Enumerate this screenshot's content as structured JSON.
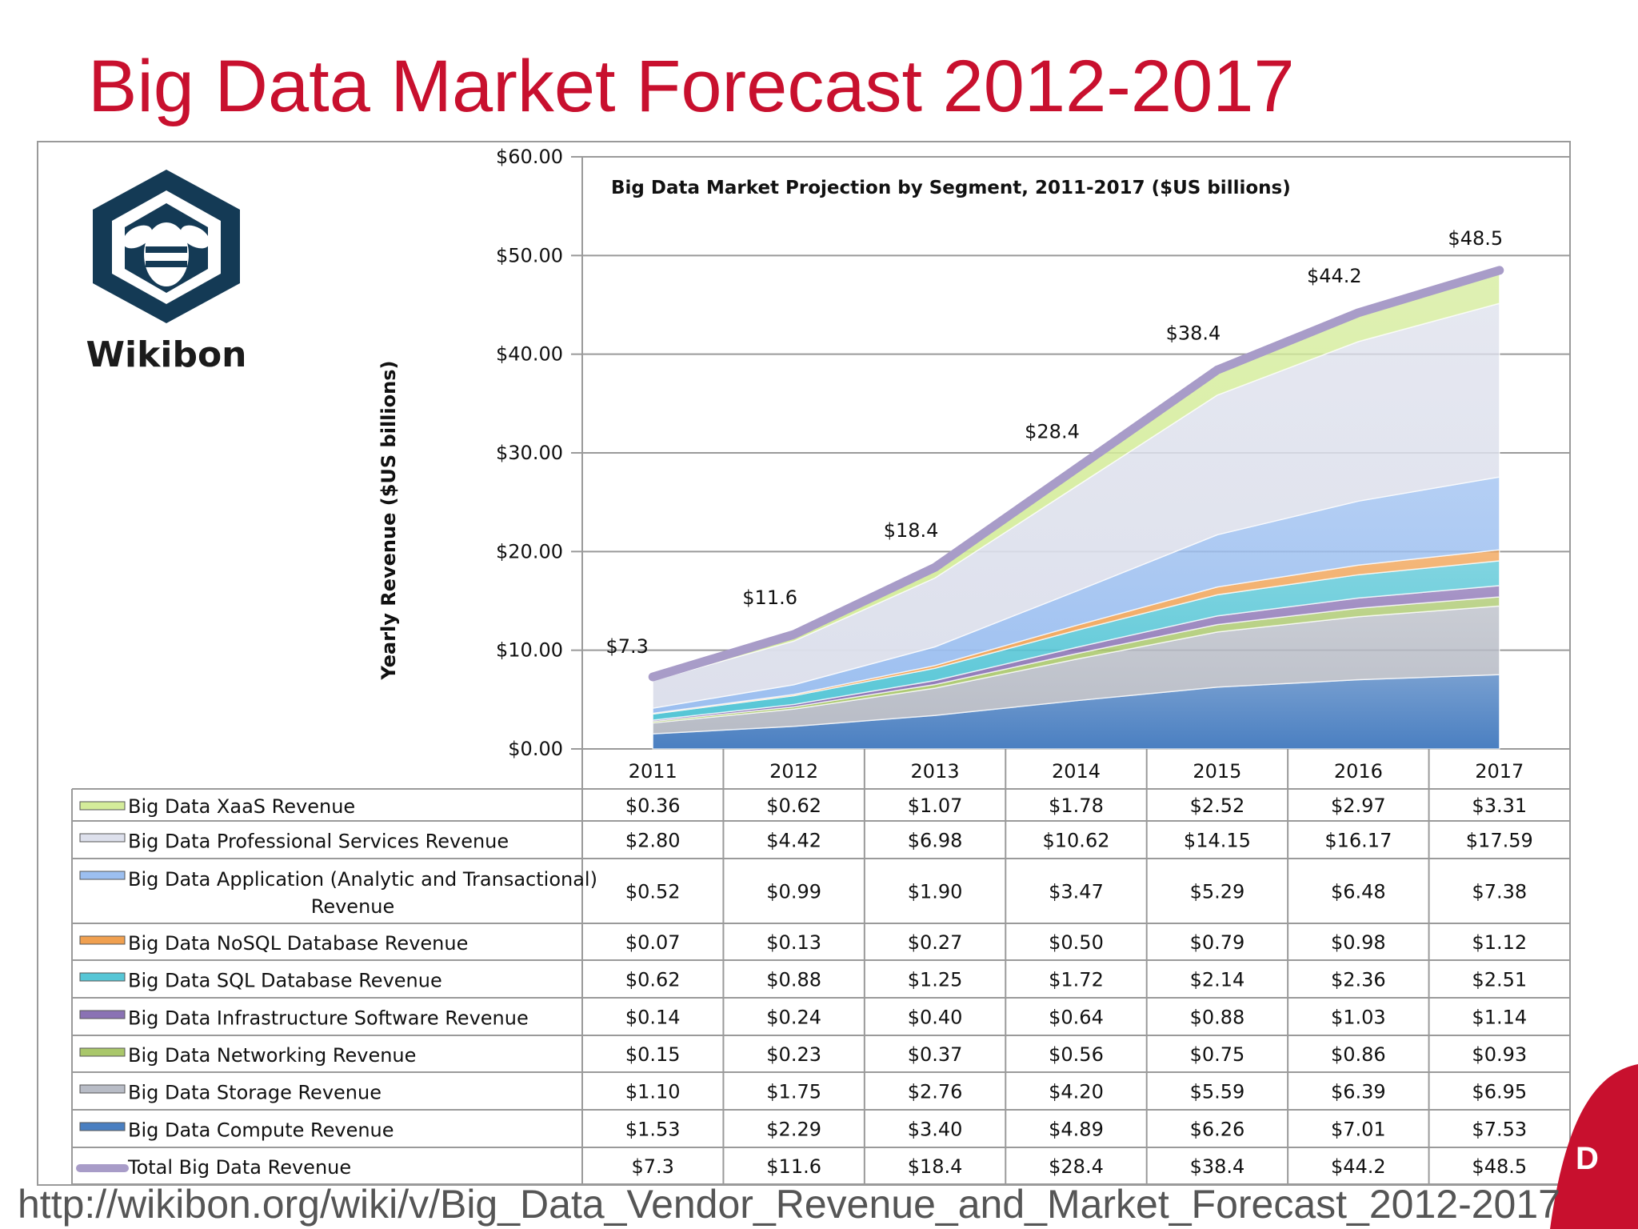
{
  "slide": {
    "title": "Big Data Market Forecast 2012-2017",
    "title_color": "#c8102e",
    "source_url": "http://wikibon.org/wiki/v/Big_Data_Vendor_Revenue_and_Market_Forecast_2012-2017"
  },
  "logo": {
    "icon": "bee-hexagon-icon",
    "text": "Wikibon",
    "color": "#143a55"
  },
  "corner_mark": {
    "text": "D",
    "color": "#c8102e"
  },
  "chart_data": {
    "type": "area",
    "title": "Big Data Market Projection by Segment, 2011-2017 ($US billions)",
    "ylabel": "Yearly Revenue ($US billions)",
    "xlabel": "",
    "ylim": [
      0,
      60
    ],
    "y_ticks": [
      "$0.00",
      "$10.00",
      "$20.00",
      "$30.00",
      "$40.00",
      "$50.00",
      "$60.00"
    ],
    "grid": true,
    "stacked": true,
    "categories": [
      "2011",
      "2012",
      "2013",
      "2014",
      "2015",
      "2016",
      "2017"
    ],
    "series": [
      {
        "name": "Big Data Compute Revenue",
        "color": "#4a7fc1",
        "values": [
          1.53,
          2.29,
          3.4,
          4.89,
          6.26,
          7.01,
          7.53
        ],
        "labels": [
          "$1.53",
          "$2.29",
          "$3.40",
          "$4.89",
          "$6.26",
          "$7.01",
          "$7.53"
        ]
      },
      {
        "name": "Big Data Storage Revenue",
        "color": "#b8bcc6",
        "values": [
          1.1,
          1.75,
          2.76,
          4.2,
          5.59,
          6.39,
          6.95
        ],
        "labels": [
          "$1.10",
          "$1.75",
          "$2.76",
          "$4.20",
          "$5.59",
          "$6.39",
          "$6.95"
        ]
      },
      {
        "name": "Big Data Networking Revenue",
        "color": "#a9c76a",
        "values": [
          0.15,
          0.23,
          0.37,
          0.56,
          0.75,
          0.86,
          0.93
        ],
        "labels": [
          "$0.15",
          "$0.23",
          "$0.37",
          "$0.56",
          "$0.75",
          "$0.86",
          "$0.93"
        ]
      },
      {
        "name": "Big Data Infrastructure Software Revenue",
        "color": "#8a72b4",
        "values": [
          0.14,
          0.24,
          0.4,
          0.64,
          0.88,
          1.03,
          1.14
        ],
        "labels": [
          "$0.14",
          "$0.24",
          "$0.40",
          "$0.64",
          "$0.88",
          "$1.03",
          "$1.14"
        ]
      },
      {
        "name": "Big Data SQL Database Revenue",
        "color": "#56c6d6",
        "values": [
          0.62,
          0.88,
          1.25,
          1.72,
          2.14,
          2.36,
          2.51
        ],
        "labels": [
          "$0.62",
          "$0.88",
          "$1.25",
          "$1.72",
          "$2.14",
          "$2.36",
          "$2.51"
        ]
      },
      {
        "name": "Big Data NoSQL Database Revenue",
        "color": "#f0a050",
        "values": [
          0.07,
          0.13,
          0.27,
          0.5,
          0.79,
          0.98,
          1.12
        ],
        "labels": [
          "$0.07",
          "$0.13",
          "$0.27",
          "$0.50",
          "$0.79",
          "$0.98",
          "$1.12"
        ]
      },
      {
        "name": "Big Data Application (Analytic and Transactional) Revenue",
        "color": "#9cbff0",
        "values": [
          0.52,
          0.99,
          1.9,
          3.47,
          5.29,
          6.48,
          7.38
        ],
        "labels": [
          "$0.52",
          "$0.99",
          "$1.90",
          "$3.47",
          "$5.29",
          "$6.48",
          "$7.38"
        ]
      },
      {
        "name": "Big Data Professional Services Revenue",
        "color": "#dde0ec",
        "values": [
          2.8,
          4.42,
          6.98,
          10.62,
          14.15,
          16.17,
          17.59
        ],
        "labels": [
          "$2.80",
          "$4.42",
          "$6.98",
          "$10.62",
          "$14.15",
          "$16.17",
          "$17.59"
        ]
      },
      {
        "name": "Big Data XaaS Revenue",
        "color": "#d4ec9a",
        "values": [
          0.36,
          0.62,
          1.07,
          1.78,
          2.52,
          2.97,
          3.31
        ],
        "labels": [
          "$0.36",
          "$0.62",
          "$1.07",
          "$1.78",
          "$2.52",
          "$2.97",
          "$3.31"
        ]
      }
    ],
    "total": {
      "name": "Total Big Data Revenue",
      "color": "#a89cc8",
      "values": [
        7.3,
        11.6,
        18.4,
        28.4,
        38.4,
        44.2,
        48.5
      ],
      "point_labels": [
        "$7.3",
        "$11.6",
        "$18.4",
        "$28.4",
        "$38.4",
        "$44.2",
        "$48.5"
      ]
    },
    "table_row_order": [
      "Big Data XaaS Revenue",
      "Big Data Professional Services Revenue",
      "Big Data Application (Analytic and Transactional) Revenue",
      "Big Data NoSQL Database Revenue",
      "Big Data SQL Database Revenue",
      "Big Data Infrastructure Software Revenue",
      "Big Data Networking Revenue",
      "Big Data Storage Revenue",
      "Big Data Compute Revenue",
      "Total Big Data Revenue"
    ],
    "table_name_lines": {
      "Big Data Application (Analytic and Transactional) Revenue": [
        "Big Data Application (Analytic and Transactional)",
        "Revenue"
      ]
    }
  }
}
